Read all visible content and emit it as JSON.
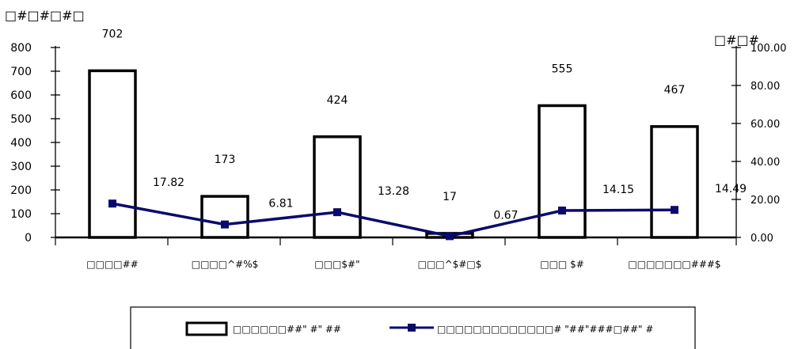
{
  "chart_data": {
    "type": "bar",
    "categories": [
      "□□□□##",
      "□□□□^#%$",
      "□□□$#\"",
      "□□□^$#□$",
      "□□□ $#",
      "□□□□□□□###$"
    ],
    "y_left_unit": "□#□#□#□",
    "y_right_unit": "□#□#",
    "y_left_ticks": [
      "0",
      "100",
      "200",
      "300",
      "400",
      "500",
      "600",
      "700",
      "800"
    ],
    "y_right_ticks": [
      "0.00",
      "20.00",
      "40.00",
      "60.00",
      "80.00",
      "100.00"
    ],
    "ylim_left": [
      0,
      800
    ],
    "ylim_right": [
      0,
      100
    ],
    "series": [
      {
        "name": "□□□□□□##\" #\" ##",
        "type": "bar",
        "axis": "left",
        "values": [
          702,
          173,
          424,
          17,
          555,
          467
        ],
        "labels": [
          "702",
          "173",
          "424",
          "17",
          "555",
          "467"
        ]
      },
      {
        "name": "□□□□□□□□□□□□□# \"##\"###□##\" #",
        "type": "line",
        "axis": "right",
        "color": "#0a0a6e",
        "values": [
          17.82,
          6.81,
          13.28,
          0.67,
          14.15,
          14.49
        ],
        "labels": [
          "17.82",
          "6.81",
          "13.28",
          "0.67",
          "14.15",
          "14.49"
        ]
      }
    ],
    "legend_position": "bottom",
    "grid": false
  }
}
